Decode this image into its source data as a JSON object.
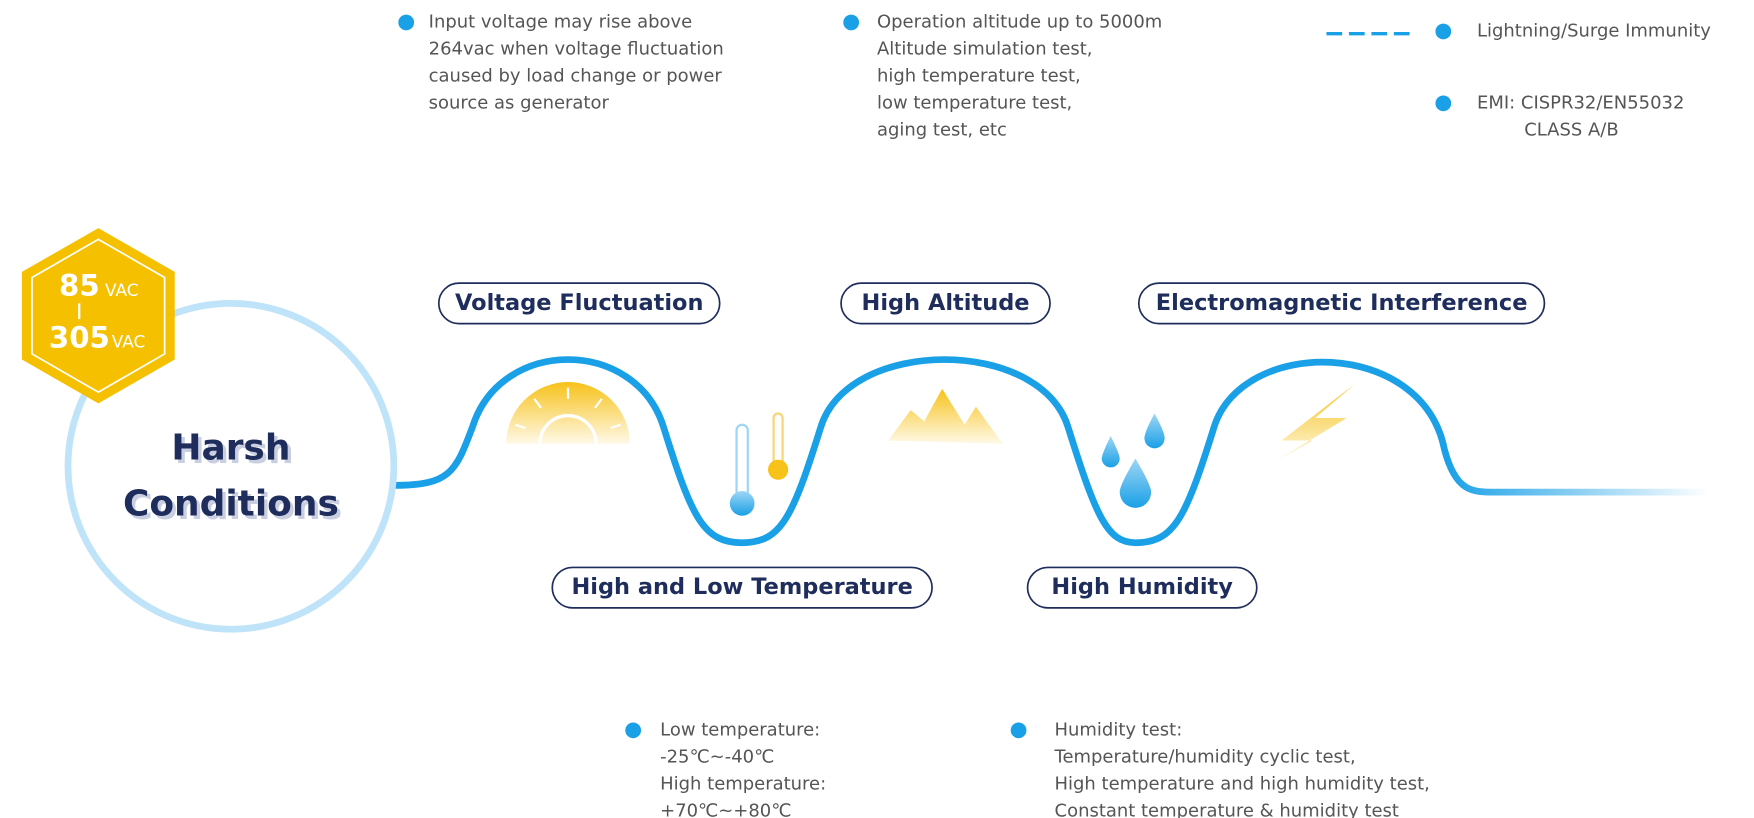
{
  "badge": {
    "min": "85",
    "min_unit": "VAC",
    "max": "305",
    "max_unit": "VAC"
  },
  "center": {
    "lines": [
      "Harsh",
      "Conditions"
    ]
  },
  "conditions": [
    {
      "label": "Voltage Fluctuation",
      "notes": [
        [
          "Input voltage may rise above",
          "264vac when voltage fluctuation",
          "caused by load change or power",
          "source as generator"
        ]
      ]
    },
    {
      "label": "High and Low Temperature",
      "notes": [
        [
          "Low temperature:",
          "-25℃~-40℃",
          "High temperature:",
          "+70℃~+80℃"
        ]
      ]
    },
    {
      "label": "High Altitude",
      "notes": [
        [
          "Operation altitude up to 5000m",
          "Altitude simulation test,",
          "high temperature test,",
          "low temperature test,",
          "aging test, etc"
        ]
      ]
    },
    {
      "label": "High Humidity",
      "notes": [
        [
          "Humidity test:",
          "Temperature/humidity cyclic test,",
          "High temperature and high humidity test,",
          "Constant temperature & humidity test"
        ]
      ]
    },
    {
      "label": "Electromagnetic Interference",
      "notes": [
        [
          "Lightning/Surge Immunity"
        ],
        [
          "EMI: CISPR32/EN55032",
          "CLASS A/B"
        ]
      ]
    }
  ]
}
